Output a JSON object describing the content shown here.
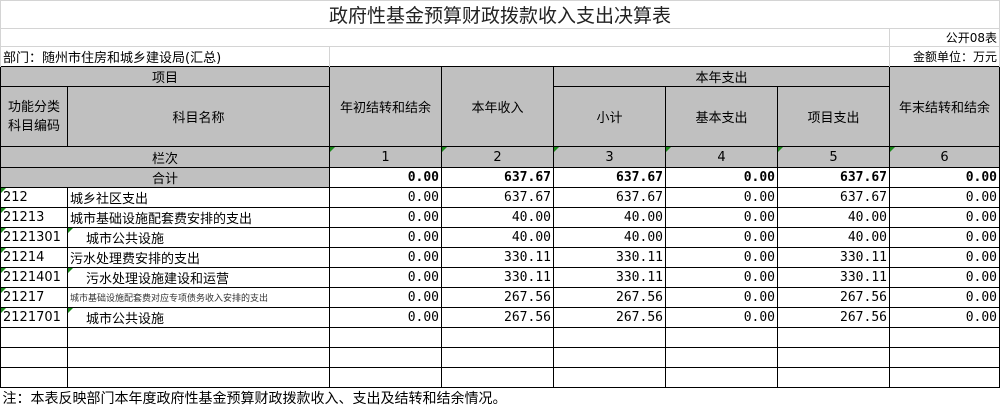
{
  "title": "政府性基金预算财政拨款收入支出决算表",
  "form_no": "公开08表",
  "department": "部门：随州市住房和城乡建设局(汇总)",
  "unit": "金额单位：万元",
  "headers": {
    "item": "项目",
    "code": "功能分类科目编码",
    "name": "科目名称",
    "begin_balance": "年初结转和结余",
    "income": "本年收入",
    "expense_group": "本年支出",
    "subtotal": "小计",
    "basic": "基本支出",
    "project": "项目支出",
    "end_balance": "年末结转和结余"
  },
  "column_index_label": "栏次",
  "column_index": [
    "1",
    "2",
    "3",
    "4",
    "5",
    "6"
  ],
  "total": {
    "label": "合计",
    "values": [
      "0.00",
      "637.67",
      "637.67",
      "0.00",
      "637.67",
      "0.00"
    ]
  },
  "rows": [
    {
      "code": "212",
      "name": "城乡社区支出",
      "indent": false,
      "small": false,
      "values": [
        "0.00",
        "637.67",
        "637.67",
        "0.00",
        "637.67",
        "0.00"
      ]
    },
    {
      "code": "21213",
      "name": "城市基础设施配套费安排的支出",
      "indent": false,
      "small": false,
      "values": [
        "0.00",
        "40.00",
        "40.00",
        "0.00",
        "40.00",
        "0.00"
      ]
    },
    {
      "code": "2121301",
      "name": "城市公共设施",
      "indent": true,
      "small": false,
      "values": [
        "0.00",
        "40.00",
        "40.00",
        "0.00",
        "40.00",
        "0.00"
      ]
    },
    {
      "code": "21214",
      "name": "污水处理费安排的支出",
      "indent": false,
      "small": false,
      "values": [
        "0.00",
        "330.11",
        "330.11",
        "0.00",
        "330.11",
        "0.00"
      ]
    },
    {
      "code": "2121401",
      "name": "污水处理设施建设和运营",
      "indent": true,
      "small": false,
      "values": [
        "0.00",
        "330.11",
        "330.11",
        "0.00",
        "330.11",
        "0.00"
      ]
    },
    {
      "code": "21217",
      "name": "城市基础设施配套费对应专项债务收入安排的支出",
      "indent": false,
      "small": true,
      "values": [
        "0.00",
        "267.56",
        "267.56",
        "0.00",
        "267.56",
        "0.00"
      ]
    },
    {
      "code": "2121701",
      "name": "城市公共设施",
      "indent": true,
      "small": false,
      "values": [
        "0.00",
        "267.56",
        "267.56",
        "0.00",
        "267.56",
        "0.00"
      ]
    }
  ],
  "empty_rows": 3,
  "note": "注：本表反映部门本年度政府性基金预算财政拨款收入、支出及结转和结余情况。",
  "colors": {
    "header_bg": "#c0c0c0",
    "marker": "#1a8a1a"
  }
}
